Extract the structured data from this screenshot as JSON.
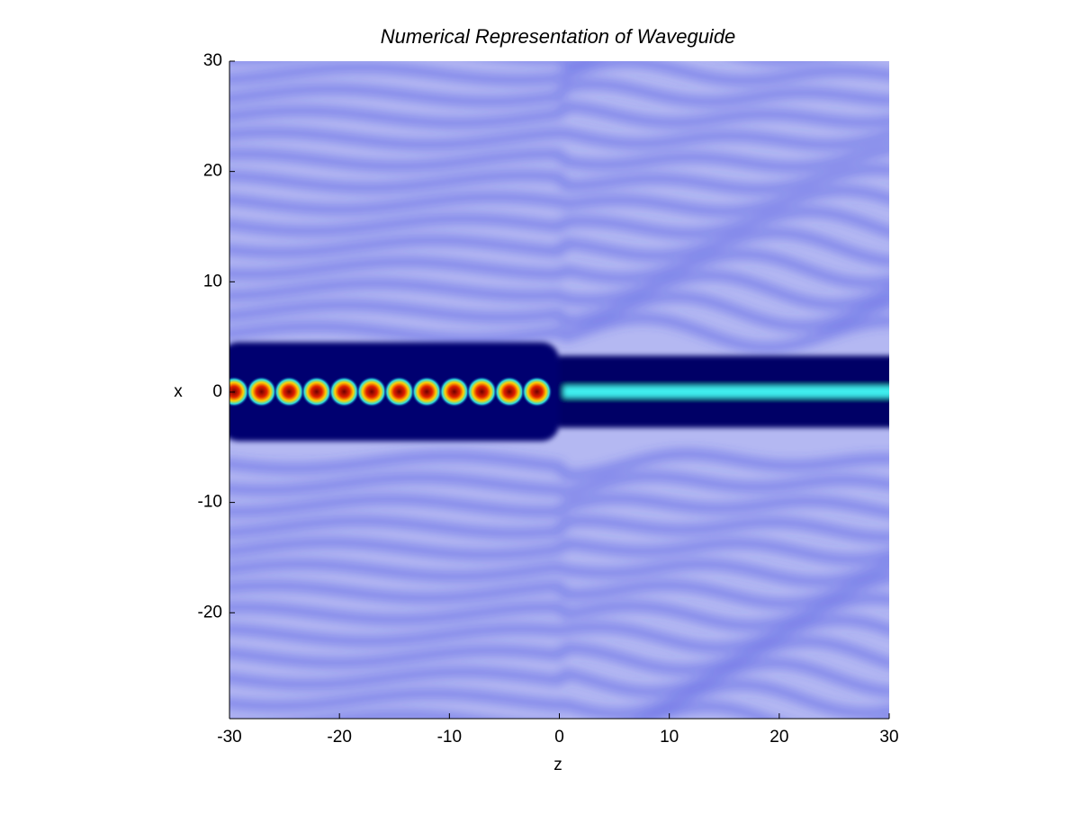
{
  "chart_data": {
    "type": "field",
    "title": "Numerical Representation of Waveguide",
    "xlabel": "z",
    "ylabel": "x",
    "xlim": [
      -30,
      30
    ],
    "ylim": [
      -29.6,
      30
    ],
    "xticks": [
      -30,
      -20,
      -10,
      0,
      10,
      20,
      30
    ],
    "yticks": [
      -20,
      -10,
      0,
      10,
      20,
      30
    ]
  }
}
